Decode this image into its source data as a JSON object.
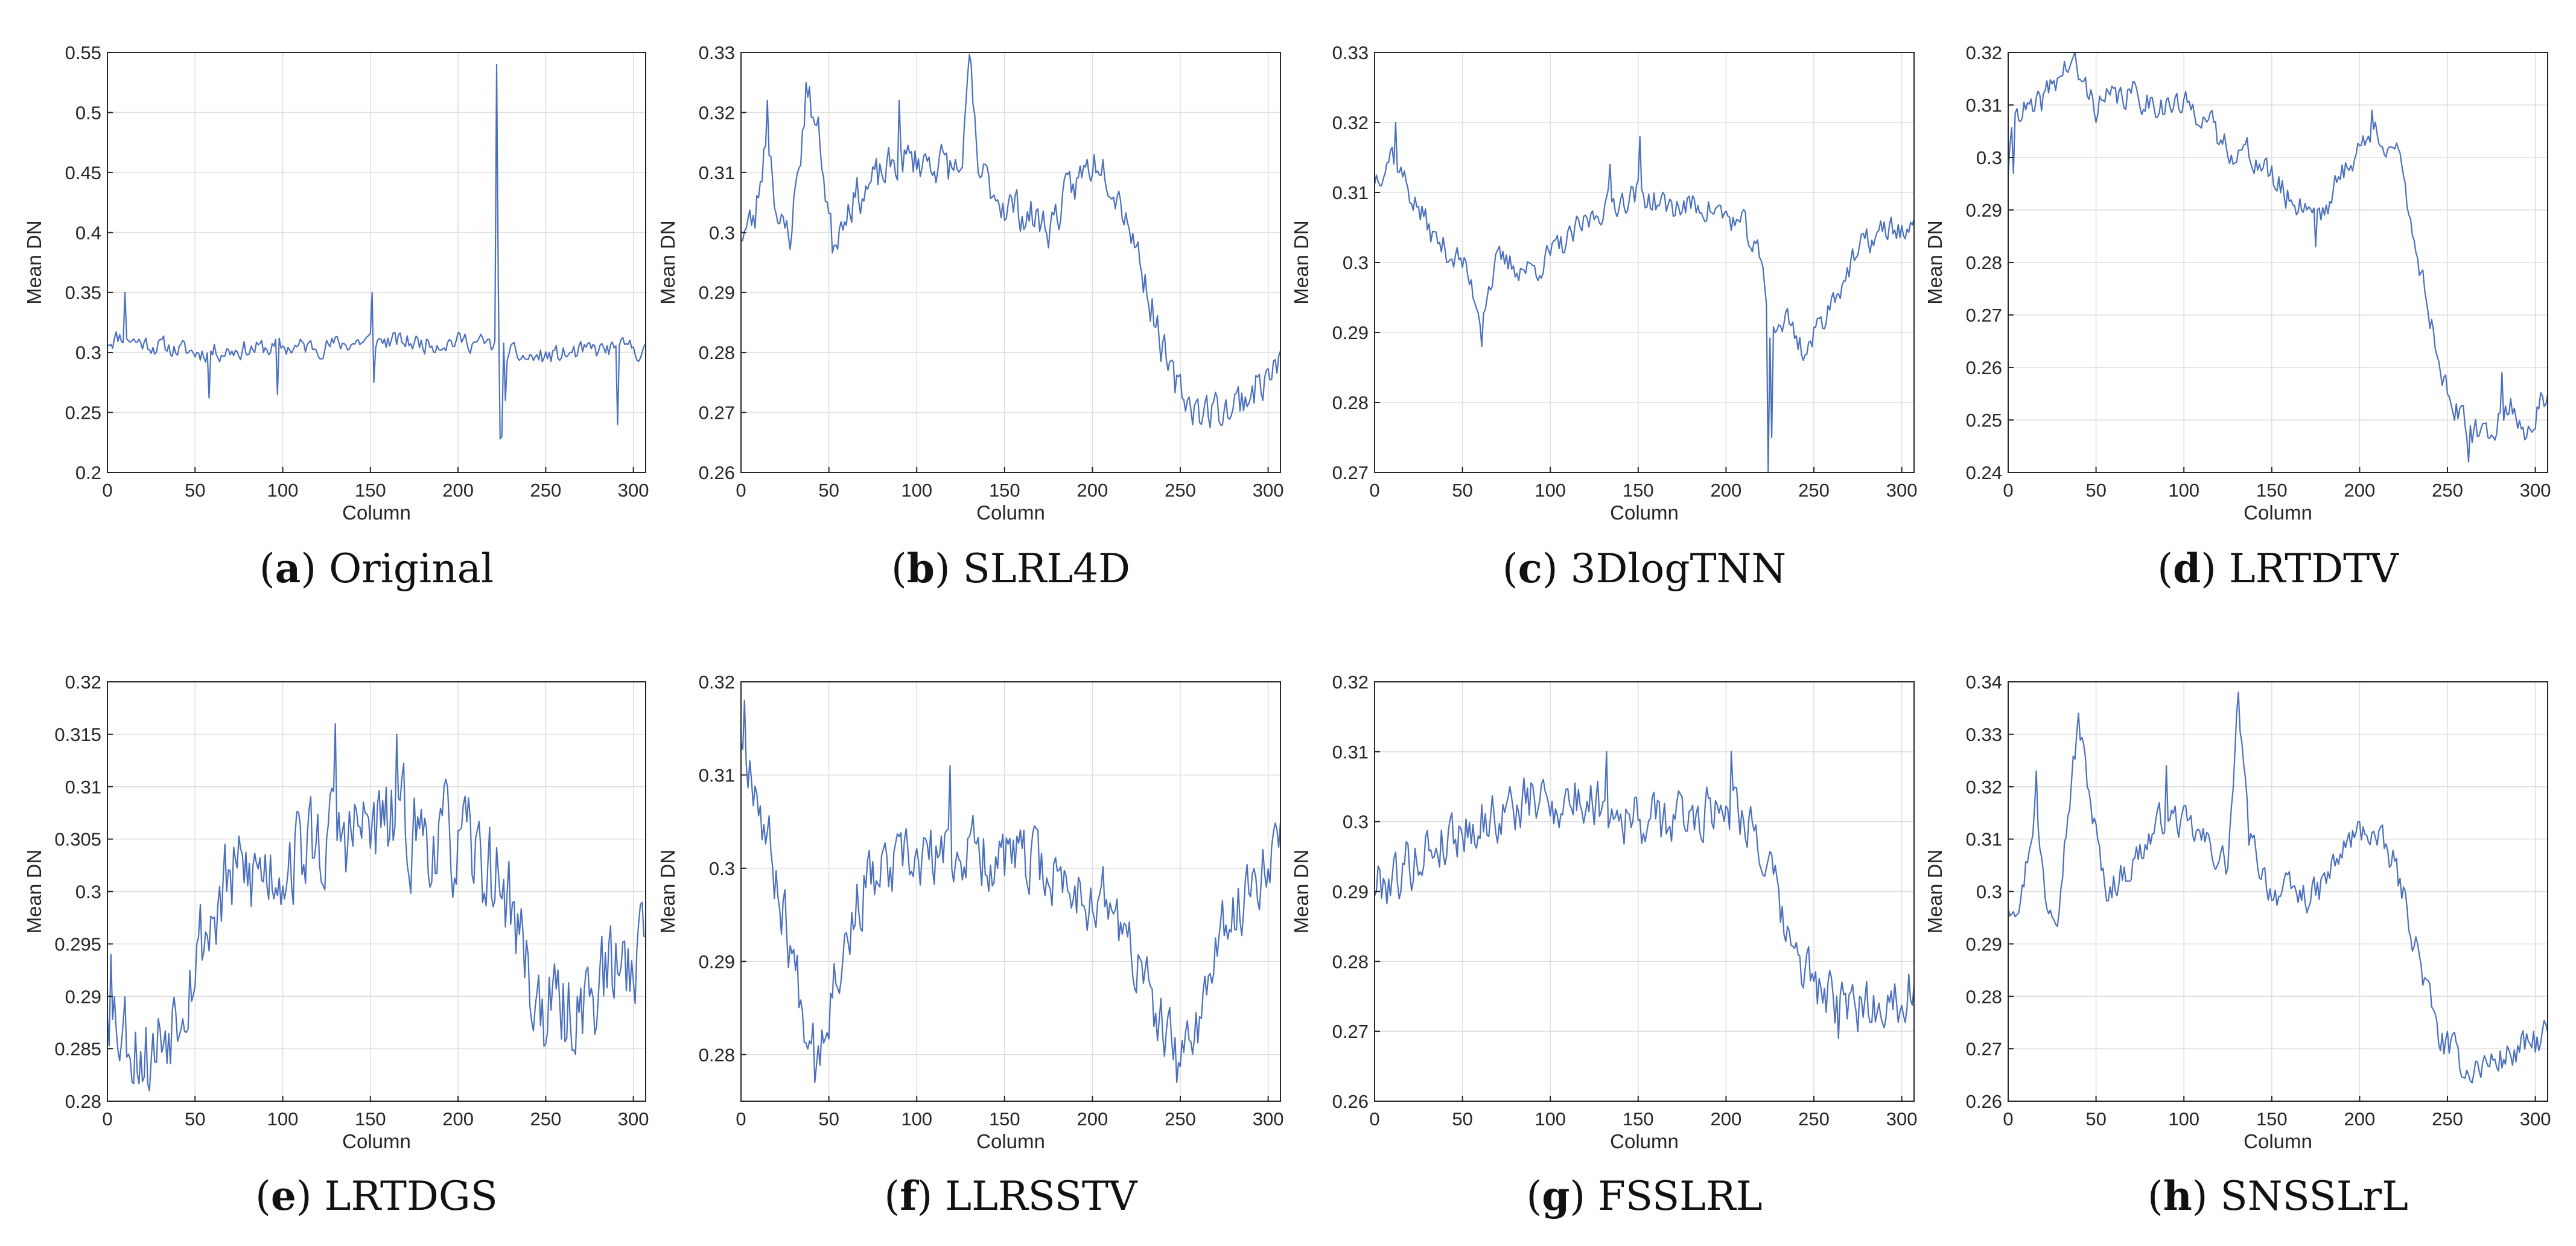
{
  "chart_data": [
    {
      "id": "a",
      "type": "line",
      "caption": {
        "letter": "a",
        "name": "Original"
      },
      "xlabel": "Column",
      "ylabel": "Mean DN",
      "xlim": [
        0,
        307
      ],
      "ylim": [
        0.2,
        0.55
      ],
      "xticks": [
        0,
        50,
        100,
        150,
        200,
        250,
        300
      ],
      "xtick_labels": [
        "0",
        "50",
        "100",
        "150",
        "200",
        "250",
        "300"
      ],
      "yticks": [
        0.2,
        0.25,
        0.3,
        0.35,
        0.4,
        0.45,
        0.5,
        0.55
      ],
      "ytick_labels": [
        "0.2",
        "0.25",
        "0.3",
        "0.35",
        "0.4",
        "0.45",
        "0.5",
        "0.55"
      ],
      "anchors": [
        [
          0,
          0.31
        ],
        [
          10,
          0.315
        ],
        [
          15,
          0.31
        ],
        [
          30,
          0.305
        ],
        [
          50,
          0.3
        ],
        [
          80,
          0.303
        ],
        [
          120,
          0.305
        ],
        [
          150,
          0.31
        ],
        [
          180,
          0.308
        ],
        [
          205,
          0.31
        ],
        [
          220,
          0.305
        ],
        [
          226,
          0.3
        ],
        [
          240,
          0.295
        ],
        [
          260,
          0.298
        ],
        [
          280,
          0.302
        ],
        [
          300,
          0.303
        ],
        [
          307,
          0.3
        ]
      ],
      "spikes": [
        [
          10,
          0.35
        ],
        [
          58,
          0.262
        ],
        [
          97,
          0.265
        ],
        [
          151,
          0.35
        ],
        [
          152,
          0.275
        ],
        [
          222,
          0.54
        ],
        [
          223,
          0.35
        ],
        [
          224,
          0.228
        ],
        [
          225,
          0.23
        ],
        [
          227,
          0.26
        ],
        [
          291,
          0.24
        ]
      ],
      "noise": 0.007,
      "seed": 11
    },
    {
      "id": "b",
      "type": "line",
      "caption": {
        "letter": "b",
        "name": "SLRL4D"
      },
      "xlabel": "Column",
      "ylabel": "Mean DN",
      "xlim": [
        0,
        307
      ],
      "ylim": [
        0.26,
        0.33
      ],
      "xticks": [
        0,
        50,
        100,
        150,
        200,
        250,
        300
      ],
      "xtick_labels": [
        "0",
        "50",
        "100",
        "150",
        "200",
        "250",
        "300"
      ],
      "yticks": [
        0.26,
        0.27,
        0.28,
        0.29,
        0.3,
        0.31,
        0.32,
        0.33
      ],
      "ytick_labels": [
        "0.26",
        "0.27",
        "0.28",
        "0.29",
        "0.3",
        "0.31",
        "0.32",
        "0.33"
      ],
      "anchors": [
        [
          0,
          0.3
        ],
        [
          8,
          0.302
        ],
        [
          15,
          0.318
        ],
        [
          22,
          0.3
        ],
        [
          28,
          0.3
        ],
        [
          38,
          0.323
        ],
        [
          45,
          0.315
        ],
        [
          52,
          0.298
        ],
        [
          60,
          0.305
        ],
        [
          75,
          0.308
        ],
        [
          90,
          0.312
        ],
        [
          110,
          0.312
        ],
        [
          125,
          0.31
        ],
        [
          130,
          0.326
        ],
        [
          135,
          0.31
        ],
        [
          150,
          0.305
        ],
        [
          175,
          0.301
        ],
        [
          195,
          0.31
        ],
        [
          205,
          0.313
        ],
        [
          220,
          0.303
        ],
        [
          232,
          0.29
        ],
        [
          245,
          0.275
        ],
        [
          262,
          0.27
        ],
        [
          280,
          0.271
        ],
        [
          300,
          0.276
        ],
        [
          307,
          0.278
        ]
      ],
      "spikes": [
        [
          15,
          0.322
        ],
        [
          37,
          0.325
        ],
        [
          90,
          0.322
        ],
        [
          131,
          0.328
        ],
        [
          262,
          0.268
        ]
      ],
      "noise": 0.003,
      "seed": 23
    },
    {
      "id": "c",
      "type": "line",
      "caption": {
        "letter": "c",
        "name": "3DlogTNN"
      },
      "xlabel": "Column",
      "ylabel": "Mean DN",
      "xlim": [
        0,
        307
      ],
      "ylim": [
        0.27,
        0.33
      ],
      "xticks": [
        0,
        50,
        100,
        150,
        200,
        250,
        300
      ],
      "xtick_labels": [
        "0",
        "50",
        "100",
        "150",
        "200",
        "250",
        "300"
      ],
      "yticks": [
        0.27,
        0.28,
        0.29,
        0.3,
        0.31,
        0.32,
        0.33
      ],
      "ytick_labels": [
        "0.27",
        "0.28",
        "0.29",
        "0.3",
        "0.31",
        "0.32",
        "0.33"
      ],
      "anchors": [
        [
          0,
          0.312
        ],
        [
          10,
          0.316
        ],
        [
          20,
          0.31
        ],
        [
          35,
          0.303
        ],
        [
          50,
          0.3
        ],
        [
          60,
          0.293
        ],
        [
          70,
          0.3
        ],
        [
          90,
          0.299
        ],
        [
          110,
          0.303
        ],
        [
          130,
          0.308
        ],
        [
          150,
          0.31
        ],
        [
          165,
          0.308
        ],
        [
          190,
          0.308
        ],
        [
          210,
          0.305
        ],
        [
          220,
          0.3
        ],
        [
          225,
          0.29
        ],
        [
          235,
          0.292
        ],
        [
          245,
          0.287
        ],
        [
          255,
          0.292
        ],
        [
          265,
          0.297
        ],
        [
          280,
          0.303
        ],
        [
          295,
          0.305
        ],
        [
          307,
          0.304
        ]
      ],
      "spikes": [
        [
          12,
          0.32
        ],
        [
          61,
          0.288
        ],
        [
          134,
          0.314
        ],
        [
          151,
          0.318
        ],
        [
          224,
          0.27
        ],
        [
          226,
          0.275
        ]
      ],
      "noise": 0.0018,
      "seed": 37
    },
    {
      "id": "d",
      "type": "line",
      "caption": {
        "letter": "d",
        "name": "LRTDTV"
      },
      "xlabel": "Column",
      "ylabel": "Mean DN",
      "xlim": [
        0,
        307
      ],
      "ylim": [
        0.24,
        0.32
      ],
      "xticks": [
        0,
        50,
        100,
        150,
        200,
        250,
        300
      ],
      "xtick_labels": [
        "0",
        "50",
        "100",
        "150",
        "200",
        "250",
        "300"
      ],
      "yticks": [
        0.24,
        0.25,
        0.26,
        0.27,
        0.28,
        0.29,
        0.3,
        0.31,
        0.32
      ],
      "ytick_labels": [
        "0.24",
        "0.25",
        "0.26",
        "0.27",
        "0.28",
        "0.29",
        "0.3",
        "0.31",
        "0.32"
      ],
      "anchors": [
        [
          0,
          0.298
        ],
        [
          5,
          0.31
        ],
        [
          15,
          0.308
        ],
        [
          25,
          0.314
        ],
        [
          35,
          0.318
        ],
        [
          50,
          0.31
        ],
        [
          70,
          0.312
        ],
        [
          90,
          0.31
        ],
        [
          110,
          0.309
        ],
        [
          120,
          0.303
        ],
        [
          140,
          0.3
        ],
        [
          160,
          0.292
        ],
        [
          180,
          0.29
        ],
        [
          195,
          0.3
        ],
        [
          210,
          0.305
        ],
        [
          220,
          0.302
        ],
        [
          228,
          0.29
        ],
        [
          240,
          0.27
        ],
        [
          250,
          0.255
        ],
        [
          262,
          0.247
        ],
        [
          275,
          0.248
        ],
        [
          285,
          0.253
        ],
        [
          295,
          0.248
        ],
        [
          307,
          0.255
        ]
      ],
      "spikes": [
        [
          38,
          0.321
        ],
        [
          3,
          0.297
        ],
        [
          175,
          0.283
        ],
        [
          207,
          0.309
        ],
        [
          262,
          0.242
        ],
        [
          281,
          0.259
        ]
      ],
      "noise": 0.0025,
      "seed": 41
    },
    {
      "id": "e",
      "type": "line",
      "caption": {
        "letter": "e",
        "name": "LRTDGS"
      },
      "xlabel": "Column",
      "ylabel": "Mean DN",
      "xlim": [
        0,
        307
      ],
      "ylim": [
        0.28,
        0.32
      ],
      "xticks": [
        0,
        50,
        100,
        150,
        200,
        250,
        300
      ],
      "xtick_labels": [
        "0",
        "50",
        "100",
        "150",
        "200",
        "250",
        "300"
      ],
      "yticks": [
        0.28,
        0.285,
        0.29,
        0.295,
        0.3,
        0.305,
        0.31,
        0.315,
        0.32
      ],
      "ytick_labels": [
        "0.28",
        "0.285",
        "0.29",
        "0.295",
        "0.3",
        "0.305",
        "0.31",
        "0.315",
        "0.32"
      ],
      "anchors": [
        [
          0,
          0.29
        ],
        [
          10,
          0.287
        ],
        [
          25,
          0.284
        ],
        [
          40,
          0.29
        ],
        [
          55,
          0.296
        ],
        [
          70,
          0.301
        ],
        [
          90,
          0.302
        ],
        [
          110,
          0.304
        ],
        [
          130,
          0.305
        ],
        [
          150,
          0.306
        ],
        [
          170,
          0.306
        ],
        [
          190,
          0.305
        ],
        [
          210,
          0.303
        ],
        [
          225,
          0.301
        ],
        [
          235,
          0.296
        ],
        [
          245,
          0.289
        ],
        [
          260,
          0.288
        ],
        [
          280,
          0.291
        ],
        [
          300,
          0.294
        ],
        [
          307,
          0.296
        ]
      ],
      "spikes": [
        [
          2,
          0.294
        ],
        [
          24,
          0.281
        ],
        [
          130,
          0.316
        ],
        [
          165,
          0.315
        ]
      ],
      "noise": 0.0042,
      "seed": 53
    },
    {
      "id": "f",
      "type": "line",
      "caption": {
        "letter": "f",
        "name": "LLRSSTV"
      },
      "xlabel": "Column",
      "ylabel": "Mean DN",
      "xlim": [
        0,
        307
      ],
      "ylim": [
        0.275,
        0.32
      ],
      "xticks": [
        0,
        50,
        100,
        150,
        200,
        250,
        300
      ],
      "xtick_labels": [
        "0",
        "50",
        "100",
        "150",
        "200",
        "250",
        "300"
      ],
      "yticks": [
        0.28,
        0.29,
        0.3,
        0.31,
        0.32
      ],
      "ytick_labels": [
        "0.28",
        "0.29",
        "0.3",
        "0.31",
        "0.32"
      ],
      "anchors": [
        [
          0,
          0.315
        ],
        [
          8,
          0.31
        ],
        [
          15,
          0.303
        ],
        [
          25,
          0.295
        ],
        [
          35,
          0.285
        ],
        [
          45,
          0.282
        ],
        [
          55,
          0.29
        ],
        [
          70,
          0.298
        ],
        [
          90,
          0.3
        ],
        [
          110,
          0.301
        ],
        [
          130,
          0.302
        ],
        [
          150,
          0.301
        ],
        [
          170,
          0.3
        ],
        [
          190,
          0.298
        ],
        [
          210,
          0.296
        ],
        [
          225,
          0.29
        ],
        [
          240,
          0.282
        ],
        [
          250,
          0.279
        ],
        [
          262,
          0.285
        ],
        [
          275,
          0.293
        ],
        [
          290,
          0.298
        ],
        [
          307,
          0.305
        ]
      ],
      "spikes": [
        [
          2,
          0.318
        ],
        [
          42,
          0.277
        ],
        [
          119,
          0.311
        ],
        [
          248,
          0.277
        ]
      ],
      "noise": 0.0032,
      "seed": 67
    },
    {
      "id": "g",
      "type": "line",
      "caption": {
        "letter": "g",
        "name": "FSSLRL"
      },
      "xlabel": "Column",
      "ylabel": "Mean DN",
      "xlim": [
        0,
        307
      ],
      "ylim": [
        0.26,
        0.32
      ],
      "xticks": [
        0,
        50,
        100,
        150,
        200,
        250,
        300
      ],
      "xtick_labels": [
        "0",
        "50",
        "100",
        "150",
        "200",
        "250",
        "300"
      ],
      "yticks": [
        0.26,
        0.27,
        0.28,
        0.29,
        0.3,
        0.31,
        0.32
      ],
      "ytick_labels": [
        "0.26",
        "0.27",
        "0.28",
        "0.29",
        "0.3",
        "0.31",
        "0.32"
      ],
      "anchors": [
        [
          0,
          0.291
        ],
        [
          15,
          0.293
        ],
        [
          30,
          0.296
        ],
        [
          50,
          0.299
        ],
        [
          70,
          0.301
        ],
        [
          90,
          0.303
        ],
        [
          110,
          0.303
        ],
        [
          130,
          0.303
        ],
        [
          150,
          0.3
        ],
        [
          170,
          0.3
        ],
        [
          190,
          0.302
        ],
        [
          205,
          0.303
        ],
        [
          215,
          0.3
        ],
        [
          225,
          0.292
        ],
        [
          235,
          0.283
        ],
        [
          250,
          0.277
        ],
        [
          265,
          0.273
        ],
        [
          285,
          0.274
        ],
        [
          300,
          0.275
        ],
        [
          307,
          0.278
        ]
      ],
      "spikes": [
        [
          132,
          0.31
        ],
        [
          203,
          0.31
        ],
        [
          264,
          0.269
        ]
      ],
      "noise": 0.0035,
      "seed": 79
    },
    {
      "id": "h",
      "type": "line",
      "caption": {
        "letter": "h",
        "name": "SNSSLrL"
      },
      "xlabel": "Column",
      "ylabel": "Mean DN",
      "xlim": [
        0,
        307
      ],
      "ylim": [
        0.26,
        0.34
      ],
      "xticks": [
        0,
        50,
        100,
        150,
        200,
        250,
        300
      ],
      "xtick_labels": [
        "0",
        "50",
        "100",
        "150",
        "200",
        "250",
        "300"
      ],
      "yticks": [
        0.26,
        0.27,
        0.28,
        0.29,
        0.3,
        0.31,
        0.32,
        0.33,
        0.34
      ],
      "ytick_labels": [
        "0.26",
        "0.27",
        "0.28",
        "0.29",
        "0.3",
        "0.31",
        "0.32",
        "0.33",
        "0.34"
      ],
      "anchors": [
        [
          0,
          0.298
        ],
        [
          8,
          0.3
        ],
        [
          15,
          0.316
        ],
        [
          22,
          0.298
        ],
        [
          28,
          0.298
        ],
        [
          40,
          0.332
        ],
        [
          48,
          0.315
        ],
        [
          55,
          0.3
        ],
        [
          70,
          0.305
        ],
        [
          90,
          0.315
        ],
        [
          110,
          0.31
        ],
        [
          125,
          0.305
        ],
        [
          131,
          0.336
        ],
        [
          137,
          0.31
        ],
        [
          150,
          0.3
        ],
        [
          175,
          0.299
        ],
        [
          195,
          0.31
        ],
        [
          205,
          0.312
        ],
        [
          220,
          0.305
        ],
        [
          232,
          0.29
        ],
        [
          245,
          0.272
        ],
        [
          262,
          0.266
        ],
        [
          280,
          0.268
        ],
        [
          300,
          0.271
        ],
        [
          307,
          0.273
        ]
      ],
      "spikes": [
        [
          16,
          0.323
        ],
        [
          40,
          0.334
        ],
        [
          90,
          0.324
        ],
        [
          131,
          0.338
        ],
        [
          262,
          0.265
        ]
      ],
      "noise": 0.0028,
      "seed": 97
    }
  ]
}
